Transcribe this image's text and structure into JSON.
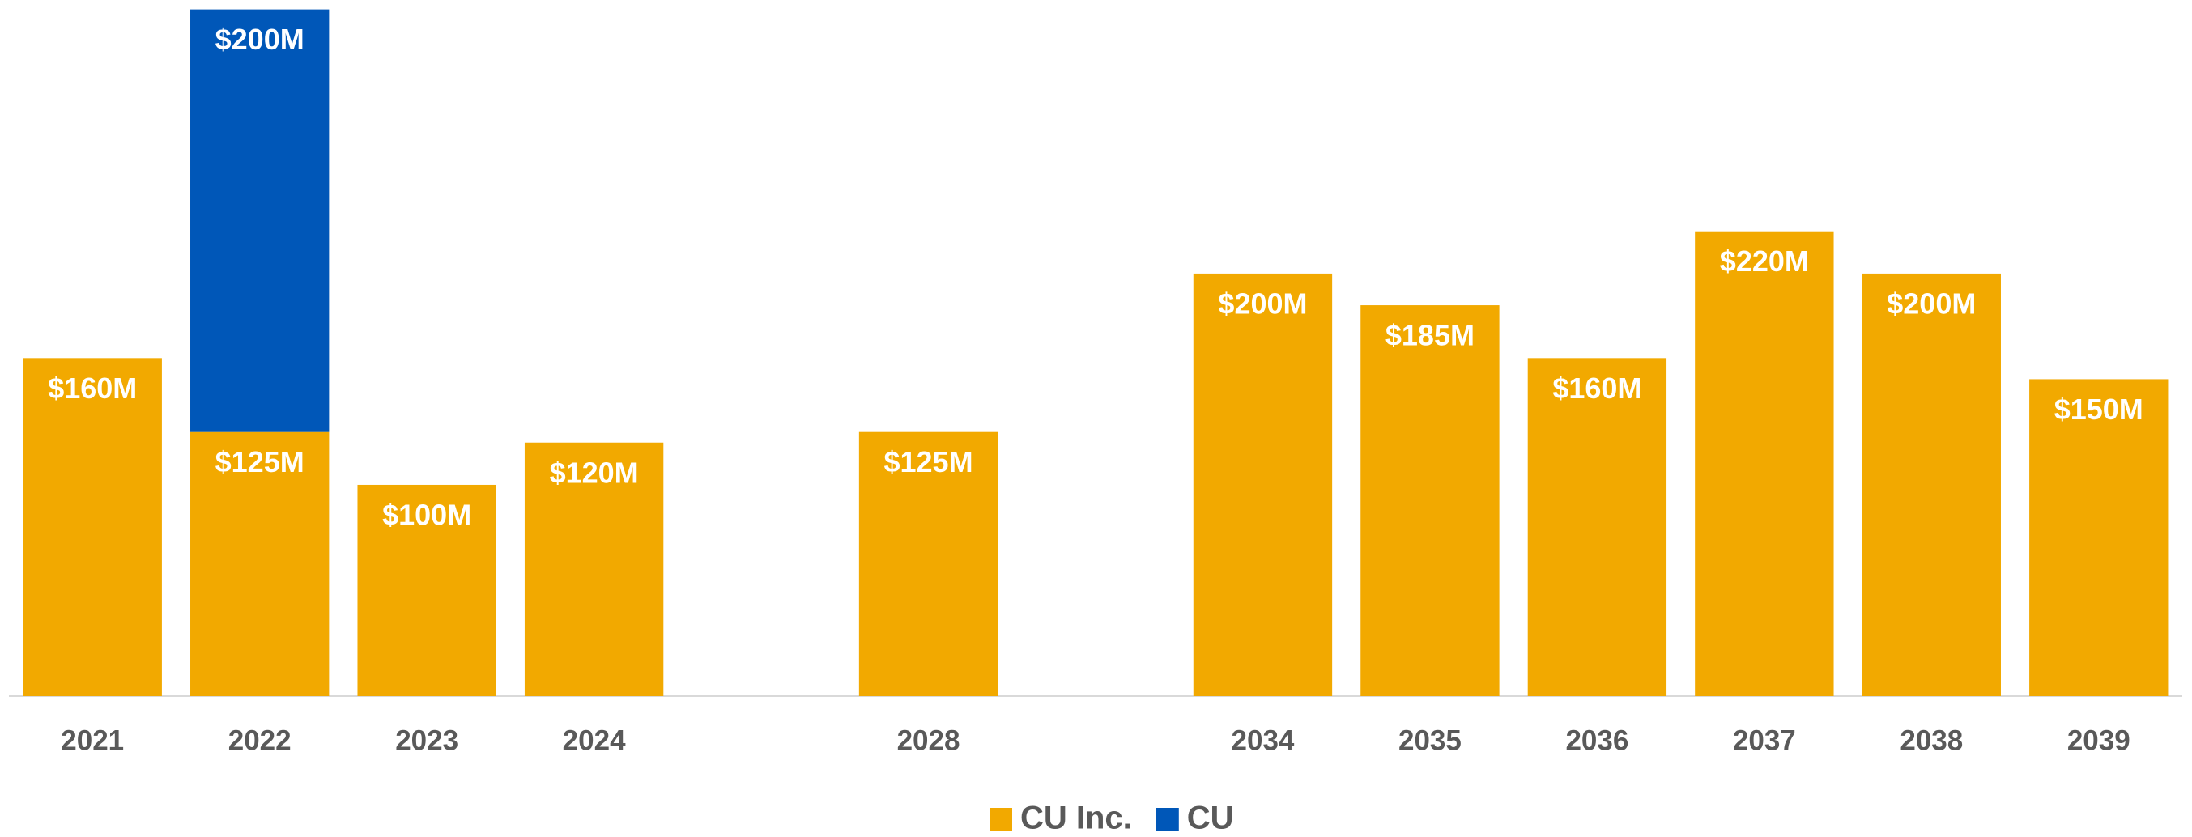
{
  "chart_data": {
    "type": "stacked_bar",
    "categories": [
      "2021",
      "2022",
      "2023",
      "2024",
      null,
      "2028",
      null,
      "2034",
      "2035",
      "2036",
      "2037",
      "2038",
      "2039"
    ],
    "series": [
      {
        "name": "CU Inc.",
        "color": "#F2A900",
        "values": [
          160,
          125,
          100,
          120,
          null,
          125,
          null,
          200,
          185,
          160,
          220,
          200,
          150
        ],
        "value_labels": [
          "$160M",
          "$125M",
          "$100M",
          "$120M",
          null,
          "$125M",
          null,
          "$200M",
          "$185M",
          "$160M",
          "$220M",
          "$200M",
          "$150M"
        ]
      },
      {
        "name": "CU",
        "color": "#0057B8",
        "values": [
          null,
          200,
          null,
          null,
          null,
          null,
          null,
          null,
          null,
          null,
          null,
          null,
          null
        ],
        "value_labels": [
          null,
          "$200M",
          null,
          null,
          null,
          null,
          null,
          null,
          null,
          null,
          null,
          null,
          null
        ]
      }
    ],
    "ylim": [
      0,
      326
    ],
    "legend": "bottom"
  }
}
